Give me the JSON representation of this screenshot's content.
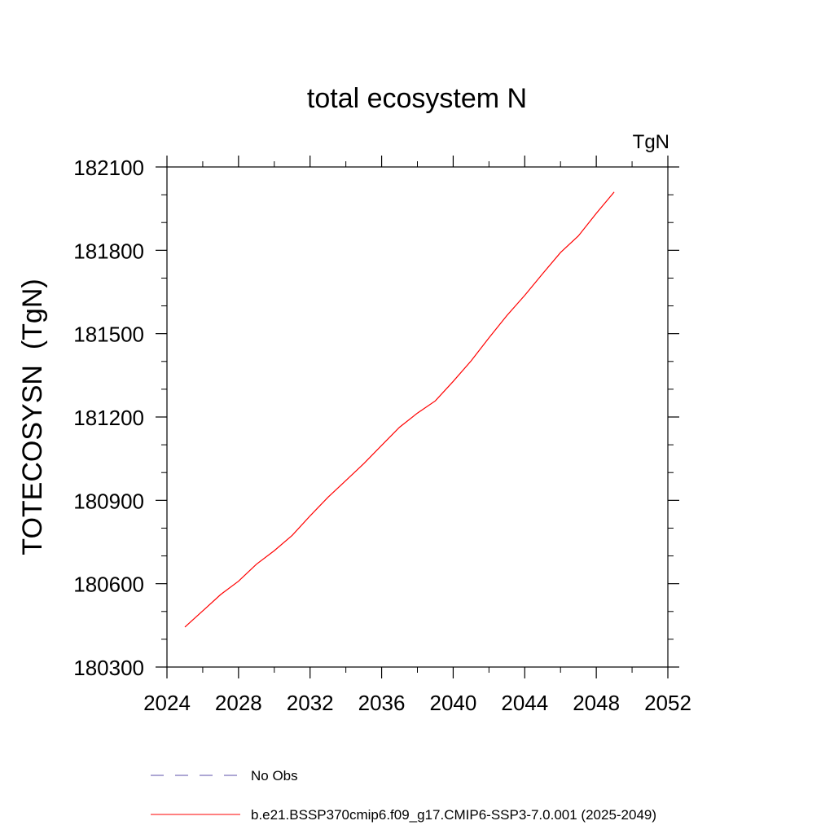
{
  "chart_data": {
    "type": "line",
    "title": "total ecosystem N",
    "units_label": "TgN",
    "xlabel": "",
    "ylabel": "TOTECOSYSN  (TgN)",
    "xlim": [
      2024,
      2052
    ],
    "ylim": [
      180300,
      182100
    ],
    "xticks": [
      2024,
      2028,
      2032,
      2036,
      2040,
      2044,
      2048,
      2052
    ],
    "yticks": [
      180300,
      180600,
      180900,
      181200,
      181500,
      181800,
      182100
    ],
    "grid": false,
    "legend_position": "bottom",
    "series": [
      {
        "name": "b.e21.BSSP370cmip6.f09_g17.CMIP6-SSP3-7.0.001 (2025-2049)",
        "color": "#ff0000",
        "dash": "solid",
        "x": [
          2025,
          2026,
          2027,
          2028,
          2029,
          2030,
          2031,
          2032,
          2033,
          2034,
          2035,
          2036,
          2037,
          2038,
          2039,
          2040,
          2041,
          2042,
          2043,
          2044,
          2045,
          2046,
          2047,
          2048,
          2049
        ],
        "y": [
          180444,
          180502,
          180561,
          180609,
          180670,
          180719,
          180774,
          180844,
          180911,
          180971,
          181032,
          181098,
          181163,
          181214,
          181258,
          181328,
          181402,
          181485,
          181565,
          181638,
          181716,
          181792,
          181852,
          181933,
          182010
        ]
      },
      {
        "name": "No Obs",
        "color": "#5b4fa8",
        "dash": "dashed",
        "x": [],
        "y": []
      }
    ]
  }
}
